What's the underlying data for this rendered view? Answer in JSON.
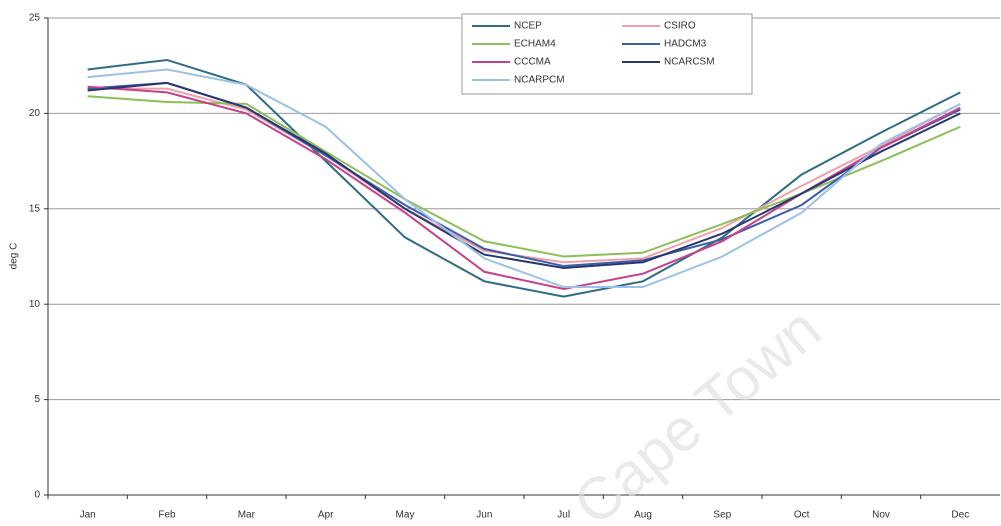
{
  "chart_data": {
    "type": "line",
    "y_label": "deg C",
    "watermark": "Cape Town",
    "categories": [
      "Jan",
      "Feb",
      "Mar",
      "Apr",
      "May",
      "Jun",
      "Jul",
      "Aug",
      "Sep",
      "Oct",
      "Nov",
      "Dec"
    ],
    "ylim": [
      0,
      25
    ],
    "yticks": [
      0,
      5,
      10,
      15,
      20,
      25
    ],
    "grid": true,
    "legend": "top",
    "series": [
      {
        "name": "NCEP",
        "color": "#2e6c86",
        "values": [
          22.3,
          22.8,
          21.5,
          17.5,
          13.5,
          11.2,
          10.4,
          11.2,
          13.5,
          16.8,
          19.0,
          21.1
        ]
      },
      {
        "name": "CSIRO",
        "color": "#f0a0a8",
        "values": [
          21.3,
          21.3,
          20.2,
          17.8,
          15.0,
          12.8,
          12.2,
          12.4,
          14.0,
          16.2,
          18.3,
          20.5
        ]
      },
      {
        "name": "ECHAM4",
        "color": "#8cbf5a",
        "values": [
          20.9,
          20.6,
          20.5,
          18.0,
          15.5,
          13.3,
          12.5,
          12.7,
          14.2,
          15.8,
          17.5,
          19.3
        ]
      },
      {
        "name": "HADCM3",
        "color": "#3a5ea8",
        "values": [
          21.3,
          21.6,
          20.3,
          17.8,
          15.2,
          12.9,
          12.0,
          12.3,
          13.4,
          15.2,
          18.2,
          20.2
        ]
      },
      {
        "name": "CCCMA",
        "color": "#c8408a",
        "values": [
          21.4,
          21.1,
          20.0,
          17.6,
          14.8,
          11.7,
          10.8,
          11.6,
          13.3,
          15.8,
          18.2,
          20.3
        ]
      },
      {
        "name": "NCARCSM",
        "color": "#2a3670",
        "values": [
          21.2,
          21.6,
          20.3,
          17.9,
          15.0,
          12.6,
          11.9,
          12.2,
          13.7,
          15.8,
          18.0,
          20.0
        ]
      },
      {
        "name": "NCARPCM",
        "color": "#9cc0e8",
        "values": [
          21.9,
          22.3,
          21.5,
          19.3,
          15.5,
          12.4,
          10.9,
          10.9,
          12.5,
          14.8,
          18.4,
          20.5
        ]
      }
    ]
  }
}
